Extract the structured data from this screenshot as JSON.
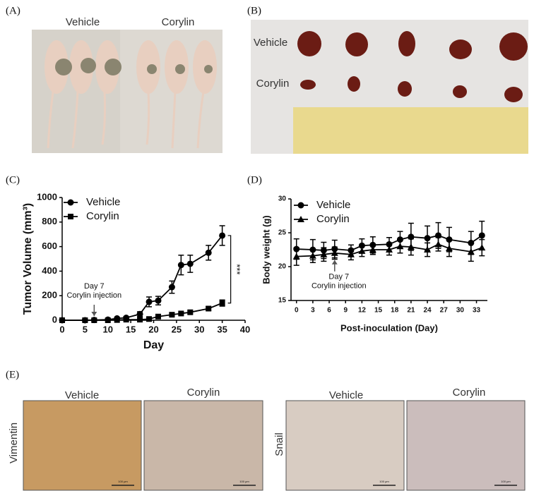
{
  "panels": [
    {
      "label": "(A)",
      "captions": [
        "Vehicle",
        "Corylin"
      ]
    },
    {
      "label": "(B)",
      "captions": [
        "Vehicle",
        "Corylin"
      ]
    },
    {
      "label": "(C)"
    },
    {
      "label": "(D)"
    },
    {
      "label": "(E)",
      "captions": [
        "Vehicle",
        "Corylin",
        "Vehicle",
        "Corylin"
      ],
      "rows": [
        "Vimentin",
        "Snail"
      ],
      "scale_bar": "100 μm"
    }
  ],
  "chart_data": [
    {
      "type": "line",
      "ylabel": "Tumor Volume (mm³)",
      "xlabel": "Day",
      "x": [
        0,
        5,
        7,
        10,
        12,
        14,
        17,
        19,
        21,
        24,
        26,
        28,
        32,
        35
      ],
      "series": [
        {
          "name": "Vehicle",
          "color": "#000000",
          "marker": "circle",
          "values": [
            0,
            0,
            2,
            5,
            15,
            20,
            50,
            150,
            160,
            270,
            450,
            460,
            550,
            690
          ],
          "errors": [
            0,
            0,
            2,
            3,
            8,
            10,
            20,
            40,
            35,
            50,
            80,
            70,
            60,
            80
          ]
        },
        {
          "name": "Corylin",
          "color": "#000000",
          "marker": "square",
          "values": [
            0,
            0,
            0,
            0,
            2,
            5,
            5,
            10,
            30,
            45,
            55,
            65,
            95,
            140
          ],
          "errors": [
            0,
            0,
            0,
            0,
            2,
            3,
            3,
            5,
            8,
            10,
            10,
            12,
            15,
            25
          ]
        }
      ],
      "xlim": [
        0,
        40
      ],
      "xticks": [
        0,
        5,
        10,
        15,
        20,
        25,
        30,
        35,
        40
      ],
      "ylim": [
        0,
        1000
      ],
      "yticks": [
        0,
        200,
        400,
        600,
        800,
        1000
      ],
      "annotation": {
        "x": 7,
        "lines": [
          "Day 7",
          "Corylin injection"
        ]
      },
      "significance": "***",
      "legend": "upper left"
    },
    {
      "type": "line",
      "ylabel": "Body weight (g)",
      "xlabel": "Post-inoculation (Day)",
      "x": [
        0,
        3,
        5,
        7,
        10,
        12,
        14,
        17,
        19,
        21,
        24,
        26,
        28,
        32,
        34
      ],
      "series": [
        {
          "name": "Vehicle",
          "color": "#000000",
          "marker": "circle",
          "values": [
            22.6,
            22.5,
            22.4,
            22.6,
            22.4,
            23.1,
            23.2,
            23.3,
            24.0,
            24.4,
            24.2,
            24.6,
            24.0,
            23.5,
            24.6
          ],
          "errors": [
            1.5,
            1.5,
            1.2,
            1.3,
            0.8,
            1.0,
            1.2,
            1.0,
            1.2,
            2.0,
            1.8,
            1.9,
            1.8,
            1.7,
            2.1
          ]
        },
        {
          "name": "Corylin",
          "color": "#000000",
          "marker": "triangle",
          "values": [
            21.5,
            21.6,
            21.8,
            22.0,
            21.8,
            22.3,
            22.5,
            22.5,
            23.0,
            22.9,
            22.5,
            23.3,
            22.7,
            22.2,
            22.8
          ],
          "errors": [
            1.3,
            1.0,
            1.0,
            0.9,
            0.8,
            0.8,
            0.7,
            0.8,
            1.0,
            1.2,
            1.0,
            1.0,
            1.2,
            1.4,
            1.2
          ]
        }
      ],
      "xlim": [
        -1,
        35
      ],
      "xticks": [
        0,
        3,
        6,
        9,
        12,
        15,
        18,
        21,
        24,
        27,
        30,
        33
      ],
      "ylim": [
        15,
        30
      ],
      "yticks": [
        15,
        20,
        25,
        30
      ],
      "annotation": {
        "x": 7,
        "lines": [
          "Day 7",
          "Corylin injection"
        ]
      },
      "legend": "upper left"
    }
  ]
}
